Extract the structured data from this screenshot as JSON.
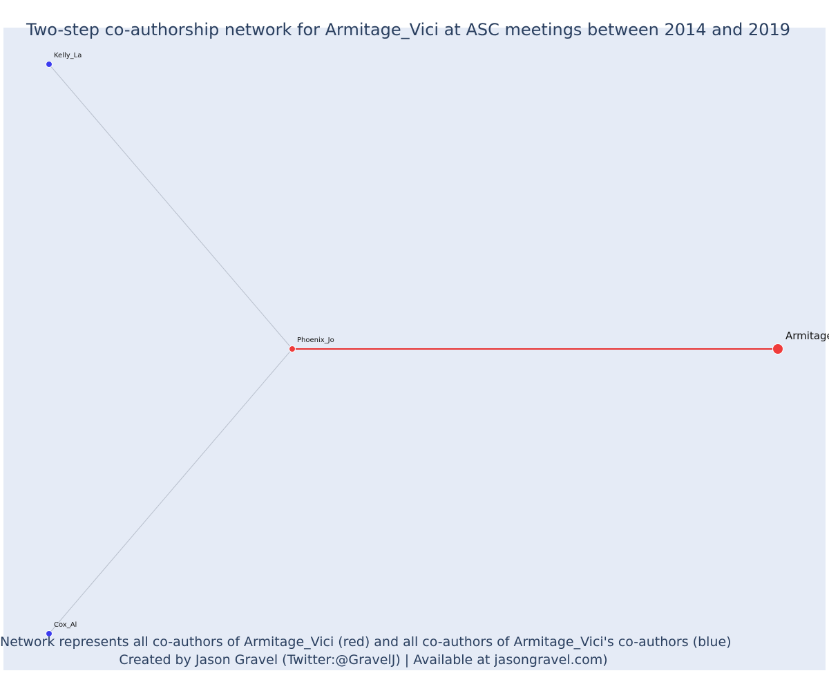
{
  "title": "Two-step co-authorship network for Armitage_Vici at ASC meetings between 2014 and 2019",
  "caption": {
    "line1": "Network represents all co-authors of Armitage_Vici (red) and all co-authors of Armitage_Vici's co-authors (blue)",
    "line2": "Created by Jason Gravel (Twitter:@GravelJ) | Available at jasongravel.com)"
  },
  "colors": {
    "background": "#e5ebf6",
    "ego": "#ef3b3b",
    "first_degree": "#ef3b3b",
    "second_degree": "#3b3bef",
    "ego_edge": "#e83030",
    "other_edge": "#b8bfcc",
    "text": "#2a3f5f"
  },
  "nodes": [
    {
      "id": "Armitage_Vici",
      "label": "Armitage",
      "role": "ego"
    },
    {
      "id": "Phoenix_Jo",
      "label": "Phoenix_Jo",
      "role": "first_degree"
    },
    {
      "id": "Kelly_La",
      "label": "Kelly_La",
      "role": "second_degree"
    },
    {
      "id": "Cox_Al",
      "label": "Cox_Al",
      "role": "second_degree"
    }
  ],
  "edges": [
    {
      "source": "Phoenix_Jo",
      "target": "Armitage_Vici",
      "type": "ego"
    },
    {
      "source": "Phoenix_Jo",
      "target": "Kelly_La",
      "type": "other"
    },
    {
      "source": "Phoenix_Jo",
      "target": "Cox_Al",
      "type": "other"
    }
  ]
}
